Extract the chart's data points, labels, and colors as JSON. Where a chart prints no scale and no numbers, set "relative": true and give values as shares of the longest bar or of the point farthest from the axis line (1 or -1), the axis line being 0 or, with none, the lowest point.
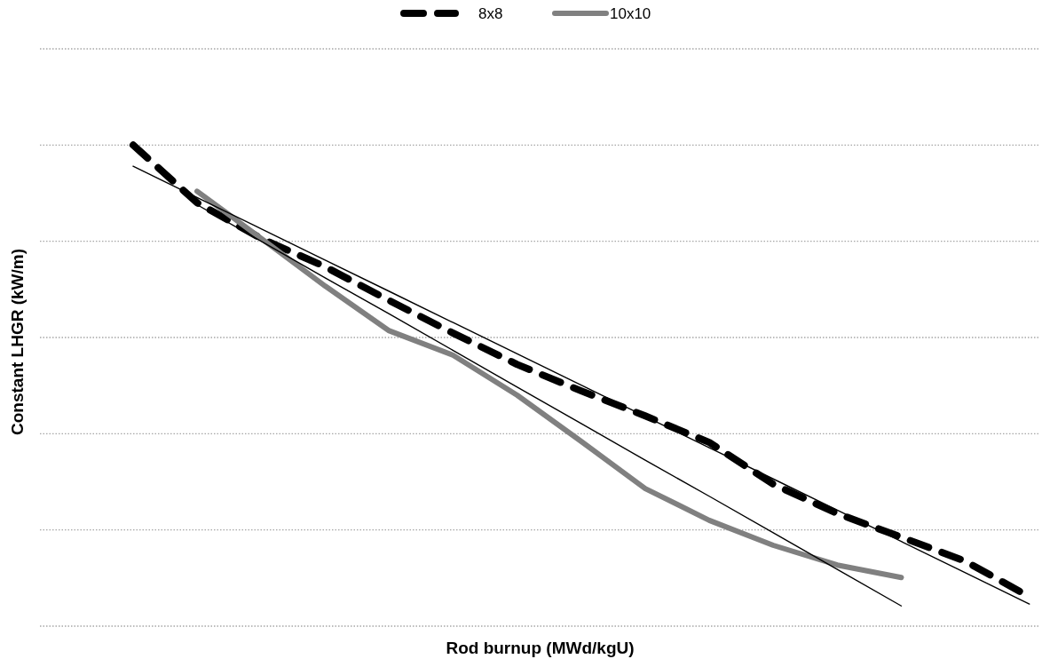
{
  "chart_data": {
    "type": "line",
    "xlabel": "Rod burnup (MWd/kgU)",
    "ylabel": "Constant LHGR (kW/m)",
    "relative": true,
    "grid": "y",
    "legend": "top",
    "categories": [
      null,
      null,
      null,
      null,
      null,
      null,
      null,
      null,
      null,
      null,
      null,
      null,
      null,
      null,
      null
    ],
    "series": [
      {
        "name": "8x8",
        "color": "#000000",
        "line_style": "dashed",
        "values": [
          1.0,
          0.88,
          0.806,
          0.747,
          0.677,
          0.609,
          0.544,
          0.489,
          0.437,
          0.382,
          0.295,
          0.234,
          0.185,
          0.135,
          0.061
        ]
      },
      {
        "name": "10x10",
        "color": "#808080",
        "line_style": "solid",
        "values": [
          null,
          0.904,
          0.806,
          0.707,
          0.614,
          0.563,
          0.48,
          0.384,
          0.286,
          0.22,
          0.168,
          0.127,
          0.101,
          null,
          null
        ]
      },
      {
        "type": "line",
        "color": "#000000",
        "line_style": "solid",
        "values": [
          0.956,
          0.891,
          0.826,
          0.761,
          0.696,
          0.631,
          0.566,
          0.501,
          0.436,
          0.371,
          0.306,
          0.241,
          0.176,
          0.111,
          0.046
        ]
      },
      {
        "type": "line",
        "color": "#000000",
        "line_style": "solid",
        "values": [
          null,
          0.876,
          0.8,
          0.724,
          0.649,
          0.573,
          0.497,
          0.421,
          0.345,
          0.27,
          0.194,
          0.118,
          0.042,
          null,
          null
        ]
      }
    ]
  }
}
